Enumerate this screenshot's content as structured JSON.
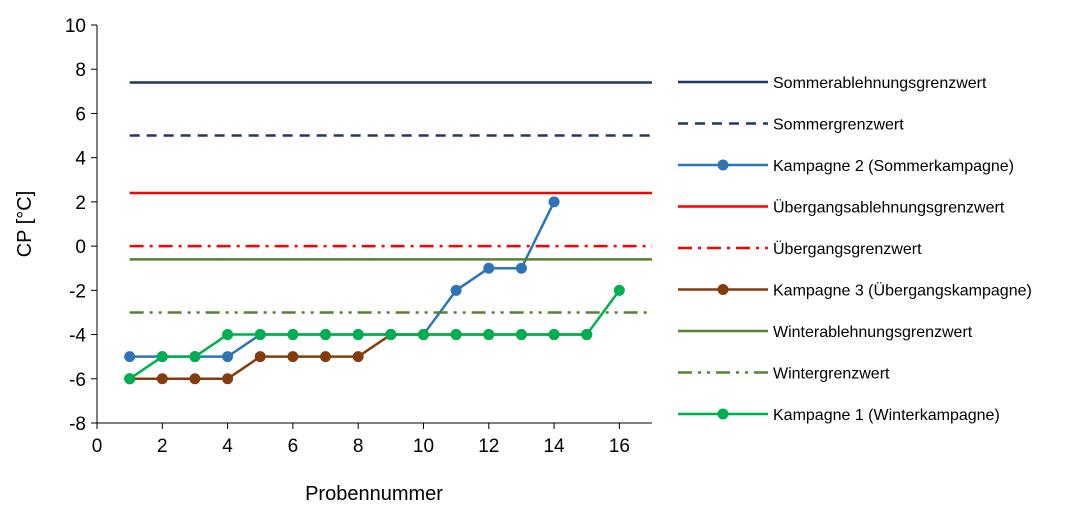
{
  "chart_data": {
    "type": "line",
    "xlabel": "Probennummer",
    "ylabel": "CP [°C]",
    "xlim": [
      0,
      17
    ],
    "ylim": [
      -8,
      10
    ],
    "x_ticks": [
      0,
      2,
      4,
      6,
      8,
      10,
      12,
      14,
      16
    ],
    "y_ticks": [
      10,
      8,
      6,
      4,
      2,
      0,
      -2,
      -4,
      -6,
      -8
    ],
    "grid": false,
    "legend_position": "right",
    "series": [
      {
        "name": "Sommerablehnungsgrenzwert",
        "kind": "hline",
        "y": 7.4,
        "color": "#1f3864",
        "dash": "solid",
        "marker": false
      },
      {
        "name": "Sommergrenzwert",
        "kind": "hline",
        "y": 5.0,
        "color": "#1f3864",
        "dash": "dash",
        "marker": false
      },
      {
        "name": "Kampagne 2 (Sommerkampagne)",
        "kind": "data",
        "color": "#2e75b6",
        "dash": "solid",
        "marker": true,
        "x": [
          1,
          2,
          3,
          4,
          5,
          6,
          7,
          8,
          9,
          10,
          11,
          12,
          13,
          14
        ],
        "y": [
          -5,
          -5,
          -5,
          -5,
          -4,
          -4,
          -4,
          -4,
          -4,
          -4,
          -2,
          -1,
          -1,
          2
        ]
      },
      {
        "name": "Übergangsablehnungsgrenzwert",
        "kind": "hline",
        "y": 2.4,
        "color": "#ff0000",
        "dash": "solid",
        "marker": false
      },
      {
        "name": "Übergangsgrenzwert",
        "kind": "hline",
        "y": 0.0,
        "color": "#ff0000",
        "dash": "dashdot",
        "marker": false
      },
      {
        "name": "Kampagne 3 (Übergangskampagne)",
        "kind": "data",
        "color": "#843c0c",
        "dash": "solid",
        "marker": true,
        "x": [
          1,
          2,
          3,
          4,
          5,
          6,
          7,
          8,
          9,
          10,
          11,
          12,
          13,
          14,
          15
        ],
        "y": [
          -6,
          -6,
          -6,
          -6,
          -5,
          -5,
          -5,
          -5,
          -4,
          -4,
          -4,
          -4,
          -4,
          -4,
          -4
        ]
      },
      {
        "name": "Winterablehnungsgrenzwert",
        "kind": "hline",
        "y": -0.6,
        "color": "#548235",
        "dash": "solid",
        "marker": false
      },
      {
        "name": "Wintergrenzwert",
        "kind": "hline",
        "y": -3.0,
        "color": "#548235",
        "dash": "dashdotdot",
        "marker": false
      },
      {
        "name": "Kampagne 1 (Winterkampagne)",
        "kind": "data",
        "color": "#00b050",
        "dash": "solid",
        "marker": true,
        "x": [
          1,
          2,
          3,
          4,
          5,
          6,
          7,
          8,
          9,
          10,
          11,
          12,
          13,
          14,
          15,
          16
        ],
        "y": [
          -6,
          -5,
          -5,
          -4,
          -4,
          -4,
          -4,
          -4,
          -4,
          -4,
          -4,
          -4,
          -4,
          -4,
          -4,
          -2
        ]
      }
    ]
  }
}
